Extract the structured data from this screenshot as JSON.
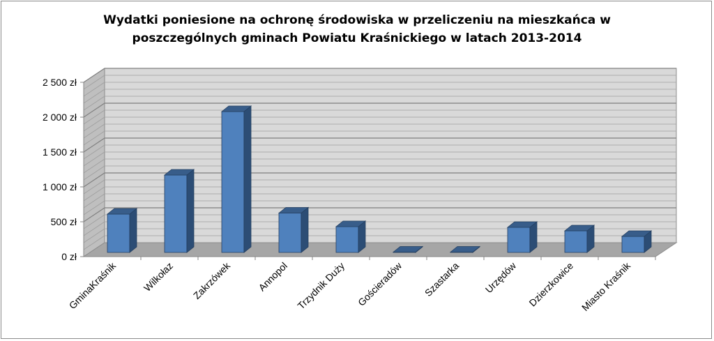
{
  "chart_data": {
    "type": "bar",
    "title_line1": "Wydatki poniesione na ochronę środowiska w przeliczeniu na mieszkańca w",
    "title_line2": "poszczególnych gminach Powiatu Kraśnickiego w latach 2013-2014",
    "categories": [
      "GminaKraśnik",
      "Wilkołaz",
      "Zakrzówek",
      "Annopol",
      "Trzydnik Duży",
      "Gościeradów",
      "Szastarka",
      "Urzędów",
      "Dzierzkowice",
      "Miasto Kraśnik"
    ],
    "values": [
      550,
      1110,
      2020,
      565,
      370,
      5,
      5,
      360,
      310,
      230
    ],
    "ylim": [
      0,
      2500
    ],
    "y_ticks": [
      0,
      500,
      1000,
      1500,
      2000,
      2500
    ],
    "y_tick_labels": [
      "0 zł",
      "500 zł",
      "1 000 zł",
      "1 500 zł",
      "2 000 zł",
      "2 500 zł"
    ],
    "grid": true,
    "bar_color": "#4f81bd",
    "bar_side_color": "#2c4d75",
    "bar_top_color": "#385d8a",
    "wall_color": "#d9d9d9",
    "floor_color": "#a6a6a6"
  }
}
